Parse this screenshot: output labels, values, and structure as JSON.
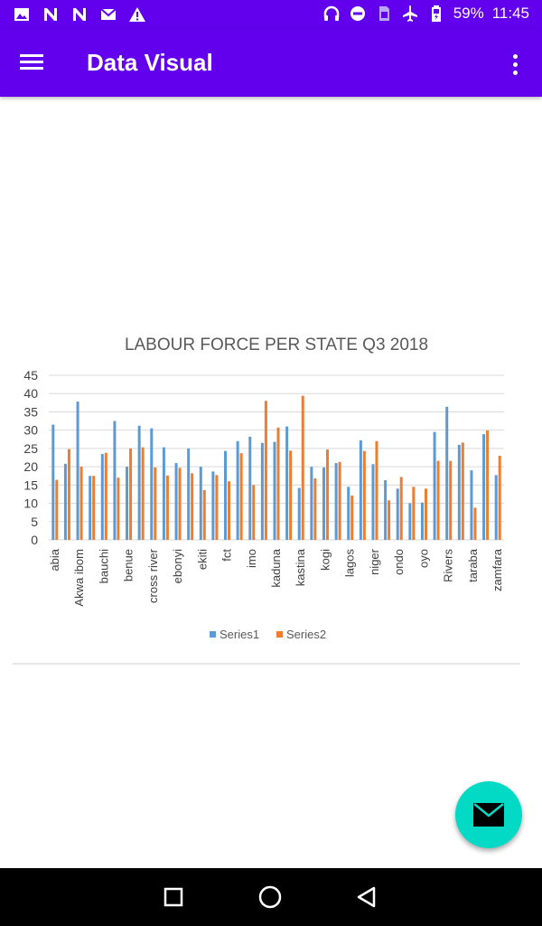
{
  "status_bar": {
    "left_icons": [
      "image-icon",
      "n-app-icon",
      "n-app-icon",
      "mail-icon",
      "warning-icon"
    ],
    "right_icons": [
      "headphones-icon",
      "do-not-disturb-icon",
      "sim-icon",
      "airplane-mode-icon",
      "battery-icon"
    ],
    "battery": "59%",
    "time": "11:45"
  },
  "app_bar": {
    "title": "Data Visual",
    "menu_icon": "menu-icon",
    "overflow_icon": "more-vert-icon",
    "color": "#6200EE"
  },
  "fab": {
    "icon": "email-icon",
    "color": "#03DAC5"
  },
  "nav_bar": {
    "icons": [
      "recents-square-icon",
      "home-circle-icon",
      "back-triangle-icon"
    ]
  },
  "colors": {
    "series1": "#5B9BD5",
    "series2": "#ED7D31"
  },
  "chart_data": {
    "type": "bar",
    "title": "LABOUR FORCE PER STATE Q3 2018",
    "categories": [
      "abia",
      "",
      "Akwa ibom",
      "",
      "bauchi",
      "",
      "benue",
      "",
      "cross river",
      "",
      "ebonyi",
      "",
      "ekiti",
      "",
      "fct",
      "",
      "imo",
      "",
      "kaduna",
      "",
      "kastina",
      "",
      "kogi",
      "",
      "lagos",
      "",
      "niger",
      "",
      "ondo",
      "",
      "oyo",
      "",
      "Rivers",
      "",
      "taraba",
      "",
      "zamfara"
    ],
    "series": [
      {
        "name": "Series1",
        "values": [
          31.5,
          20.8,
          37.8,
          17.5,
          23.5,
          32.5,
          20.0,
          31.2,
          30.5,
          25.3,
          21.0,
          25.0,
          20.0,
          18.7,
          24.3,
          27.0,
          28.2,
          26.5,
          26.8,
          31.0,
          14.2,
          20.0,
          19.8,
          21.0,
          14.5,
          27.2,
          20.7,
          16.3,
          14.0,
          10.0,
          10.2,
          29.5,
          36.4,
          26.0,
          19.0,
          28.9,
          17.7
        ]
      },
      {
        "name": "Series2",
        "values": [
          16.4,
          24.8,
          20.0,
          17.5,
          23.8,
          17.0,
          25.0,
          25.3,
          19.8,
          17.6,
          19.7,
          18.2,
          13.6,
          17.7,
          16.0,
          23.7,
          15.0,
          38.0,
          30.7,
          24.4,
          39.4,
          16.8,
          24.7,
          21.3,
          12.1,
          24.3,
          27.0,
          10.8,
          17.2,
          14.5,
          14.0,
          21.6,
          21.6,
          26.6,
          8.8,
          29.9,
          23.0
        ]
      }
    ],
    "ylim": [
      0,
      45
    ],
    "yticks": [
      0,
      5,
      10,
      15,
      20,
      25,
      30,
      35,
      40,
      45
    ],
    "grid": true,
    "legend": "bottom"
  }
}
